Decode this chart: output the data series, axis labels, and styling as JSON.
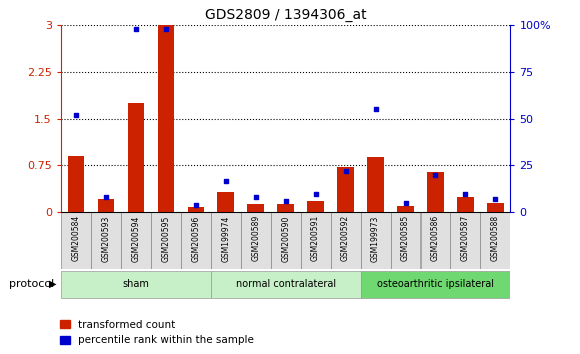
{
  "title": "GDS2809 / 1394306_at",
  "samples": [
    "GSM200584",
    "GSM200593",
    "GSM200594",
    "GSM200595",
    "GSM200596",
    "GSM199974",
    "GSM200589",
    "GSM200590",
    "GSM200591",
    "GSM200592",
    "GSM199973",
    "GSM200585",
    "GSM200586",
    "GSM200587",
    "GSM200588"
  ],
  "red_values": [
    0.9,
    0.22,
    1.75,
    3.0,
    0.08,
    0.32,
    0.14,
    0.13,
    0.18,
    0.72,
    0.88,
    0.1,
    0.65,
    0.25,
    0.15
  ],
  "blue_values": [
    52,
    8,
    98,
    98,
    4,
    17,
    8,
    6,
    10,
    22,
    55,
    5,
    20,
    10,
    7
  ],
  "groups": [
    {
      "label": "sham",
      "start": 0,
      "end": 5,
      "color": "#c8f0c8"
    },
    {
      "label": "normal contralateral",
      "start": 5,
      "end": 10,
      "color": "#c8f0c8"
    },
    {
      "label": "osteoarthritic ipsilateral",
      "start": 10,
      "end": 15,
      "color": "#70d870"
    }
  ],
  "ylim_left": [
    0,
    3
  ],
  "ylim_right": [
    0,
    100
  ],
  "yticks_left": [
    0,
    0.75,
    1.5,
    2.25,
    3.0
  ],
  "ytick_labels_left": [
    "0",
    "0.75",
    "1.5",
    "2.25",
    "3"
  ],
  "yticks_right": [
    0,
    25,
    50,
    75,
    100
  ],
  "ytick_labels_right": [
    "0",
    "25",
    "50",
    "75",
    "100%"
  ],
  "bar_color": "#cc2200",
  "dot_color": "#0000cc",
  "bar_width": 0.55,
  "dot_size": 10,
  "protocol_label": "protocol",
  "legend_items": [
    "transformed count",
    "percentile rank within the sample"
  ],
  "background_color": "#ffffff",
  "plot_bg_color": "#ffffff",
  "left_axis_color": "#cc2200",
  "right_axis_color": "#0000cc",
  "label_bg_color": "#d8d8d8",
  "label_divider_color": "#888888"
}
